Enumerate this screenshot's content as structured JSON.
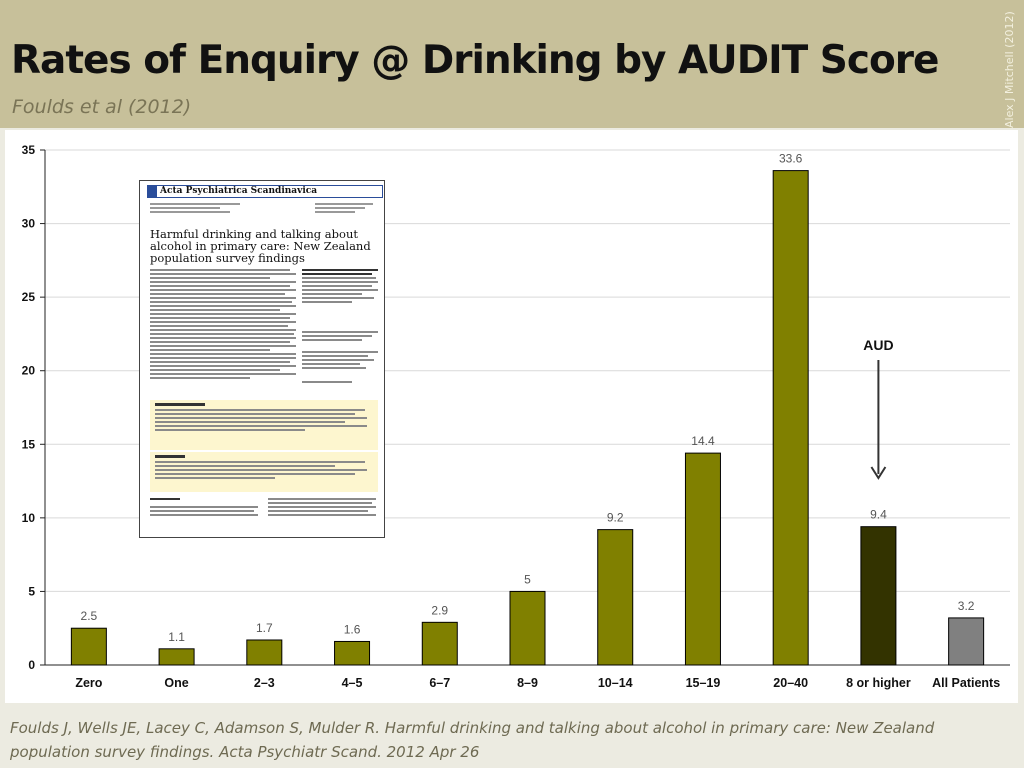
{
  "header": {
    "title": "Rates of Enquiry @ Drinking by AUDIT Score",
    "subtitle": "Foulds et al (2012)",
    "credit": "Alex J Mitchell (2012)"
  },
  "paper": {
    "journal": "Acta Psychiatrica Scandinavica",
    "title": "Harmful drinking and talking about alcohol in primary care: New Zealand population survey findings"
  },
  "annotation": {
    "label": "AUD",
    "arrow": "down-arrow"
  },
  "footer": {
    "line1": "Foulds J, Wells JE, Lacey C, Adamson S, Mulder R. Harmful drinking and talking about alcohol in primary care: New Zealand",
    "line2": "population survey findings. Acta Psychiatr Scand. 2012 Apr 26"
  },
  "colors": {
    "bar": "#808000",
    "highlight_bar": "#333300",
    "total_bar": "#808080",
    "header_bg": "#c7c09a"
  },
  "chart_data": {
    "type": "bar",
    "categories": [
      "Zero",
      "One",
      "2–3",
      "4–5",
      "6–7",
      "8–9",
      "10–14",
      "15–19",
      "20–40",
      "8 or higher",
      "All Patients"
    ],
    "values": [
      2.5,
      1.1,
      1.7,
      1.6,
      2.9,
      5,
      9.2,
      14.4,
      33.6,
      9.4,
      3.2
    ],
    "value_labels": [
      "2.5",
      "1.1",
      "1.7",
      "1.6",
      "2.9",
      "5",
      "9.2",
      "14.4",
      "33.6",
      "9.4",
      "3.2"
    ],
    "ylim": [
      0,
      35
    ],
    "yticks": [
      0,
      5,
      10,
      15,
      20,
      25,
      30,
      35
    ],
    "grid": true,
    "title": "",
    "xlabel": "",
    "ylabel": "",
    "bar_colors": [
      "#808000",
      "#808000",
      "#808000",
      "#808000",
      "#808000",
      "#808000",
      "#808000",
      "#808000",
      "#808000",
      "#333300",
      "#808080"
    ]
  }
}
